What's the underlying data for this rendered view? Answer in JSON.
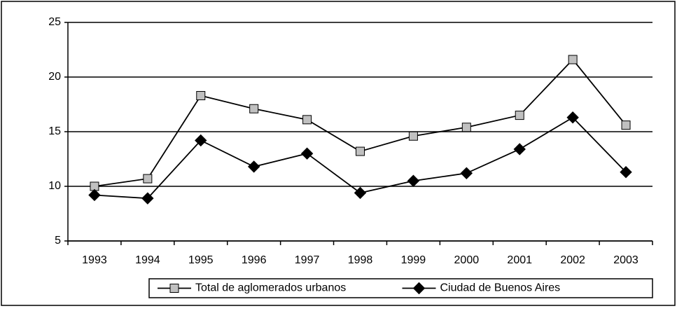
{
  "chart_data": {
    "type": "line",
    "categories": [
      "1993",
      "1994",
      "1995",
      "1996",
      "1997",
      "1998",
      "1999",
      "2000",
      "2001",
      "2002",
      "2003"
    ],
    "series": [
      {
        "name": "Total de aglomerados urbanos",
        "color": "#000000",
        "marker": "square",
        "marker_color": "#c0c0c0",
        "values": [
          10.0,
          10.7,
          18.3,
          17.1,
          16.1,
          13.2,
          14.6,
          15.4,
          16.5,
          21.6,
          15.6
        ]
      },
      {
        "name": "Ciudad de Buenos Aires",
        "color": "#000000",
        "marker": "diamond",
        "marker_color": "#000000",
        "values": [
          9.2,
          8.9,
          14.2,
          11.8,
          13.0,
          9.4,
          10.5,
          11.2,
          13.4,
          16.3,
          11.3
        ]
      }
    ],
    "ylim": [
      5,
      25
    ],
    "yticks": [
      5,
      10,
      15,
      20,
      25
    ],
    "grid": true,
    "legend": "bottom"
  }
}
